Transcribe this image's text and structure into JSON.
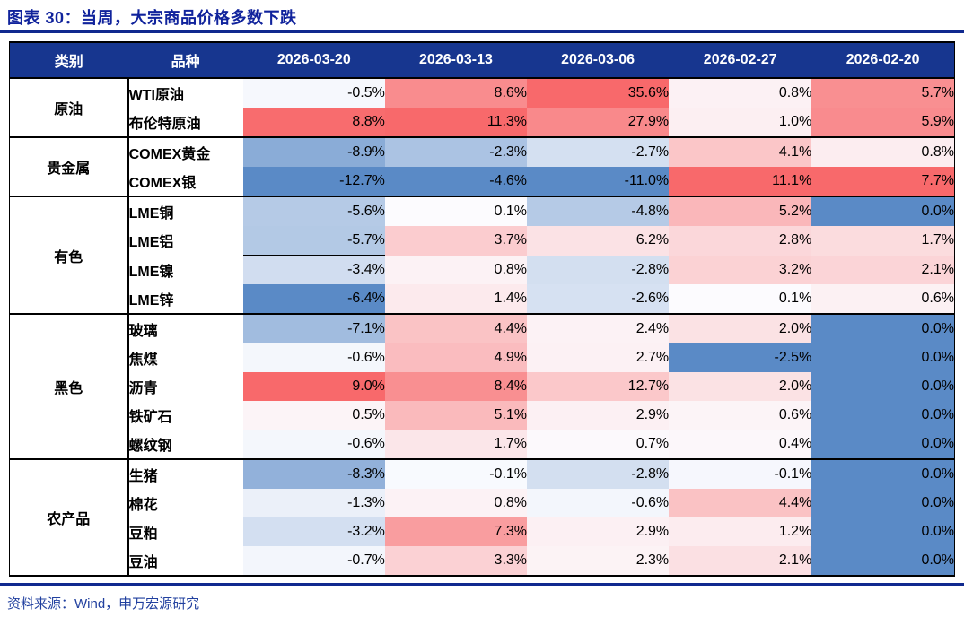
{
  "title": "图表 30：当周，大宗商品价格多数下跌",
  "source_note": "资料来源：Wind，申万宏源研究",
  "colors": {
    "title_text": "#10239C",
    "rule_blue": "#10298F",
    "header_bg": "#17368F",
    "source_text": "#21409F",
    "cell_text": "#000000"
  },
  "chart_data": {
    "type": "heatmap",
    "title": "当周，大宗商品价格多数下跌",
    "figure_label": "图表 30",
    "value_format": "percent_one_decimal",
    "columns": [
      "类别",
      "品种",
      "2026-03-20",
      "2026-03-13",
      "2026-03-06",
      "2026-02-27",
      "2026-02-20"
    ],
    "groups": [
      {
        "category": "原油",
        "rows": [
          {
            "name": "WTI原油",
            "values": [
              -0.5,
              8.6,
              35.6,
              0.8,
              5.7
            ]
          },
          {
            "name": "布伦特原油",
            "values": [
              8.8,
              11.3,
              27.9,
              1.0,
              5.9
            ]
          }
        ]
      },
      {
        "category": "贵金属",
        "rows": [
          {
            "name": "COMEX黄金",
            "values": [
              -8.9,
              -2.3,
              -2.7,
              4.1,
              0.8
            ]
          },
          {
            "name": "COMEX银",
            "values": [
              -12.7,
              -4.6,
              -11.0,
              11.1,
              7.7
            ]
          }
        ]
      },
      {
        "category": "有色",
        "rows": [
          {
            "name": "LME铜",
            "values": [
              -5.6,
              0.1,
              -4.8,
              5.2,
              0.0
            ]
          },
          {
            "name": "LME铝",
            "values": [
              -5.7,
              3.7,
              6.2,
              2.8,
              1.7
            ]
          },
          {
            "name": "LME镍",
            "values": [
              -3.4,
              0.8,
              -2.8,
              3.2,
              2.1
            ]
          },
          {
            "name": "LME锌",
            "values": [
              -6.4,
              1.4,
              -2.6,
              0.1,
              0.6
            ]
          }
        ]
      },
      {
        "category": "黑色",
        "rows": [
          {
            "name": "玻璃",
            "values": [
              -7.1,
              4.4,
              2.4,
              2.0,
              0.0
            ]
          },
          {
            "name": "焦煤",
            "values": [
              -0.6,
              4.9,
              2.7,
              -2.5,
              0.0
            ]
          },
          {
            "name": "沥青",
            "values": [
              9.0,
              8.4,
              12.7,
              2.0,
              0.0
            ]
          },
          {
            "name": "铁矿石",
            "values": [
              0.5,
              5.1,
              2.9,
              0.6,
              0.0
            ]
          },
          {
            "name": "螺纹钢",
            "values": [
              -0.6,
              1.7,
              0.7,
              0.4,
              0.0
            ]
          }
        ]
      },
      {
        "category": "农产品",
        "rows": [
          {
            "name": "生猪",
            "values": [
              -8.3,
              -0.1,
              -2.8,
              -0.1,
              0.0
            ]
          },
          {
            "name": "棉花",
            "values": [
              -1.3,
              0.8,
              -0.6,
              4.4,
              0.0
            ]
          },
          {
            "name": "豆粕",
            "values": [
              -3.2,
              7.3,
              2.9,
              1.2,
              0.0
            ]
          },
          {
            "name": "豆油",
            "values": [
              -0.7,
              3.3,
              2.3,
              2.1,
              0.0
            ]
          }
        ]
      }
    ],
    "color_scale": {
      "mode": "per_column",
      "midpoint_value": 0,
      "min_color": "#5A8AC6",
      "mid_color": "#FCFCFF",
      "max_color": "#F8696B"
    },
    "special_cells": [
      {
        "row": "LME锌",
        "column_index": 0,
        "color": "min_color"
      },
      {
        "row": "LME铝",
        "column_index": 0,
        "style": "bottom_black_line"
      }
    ]
  }
}
